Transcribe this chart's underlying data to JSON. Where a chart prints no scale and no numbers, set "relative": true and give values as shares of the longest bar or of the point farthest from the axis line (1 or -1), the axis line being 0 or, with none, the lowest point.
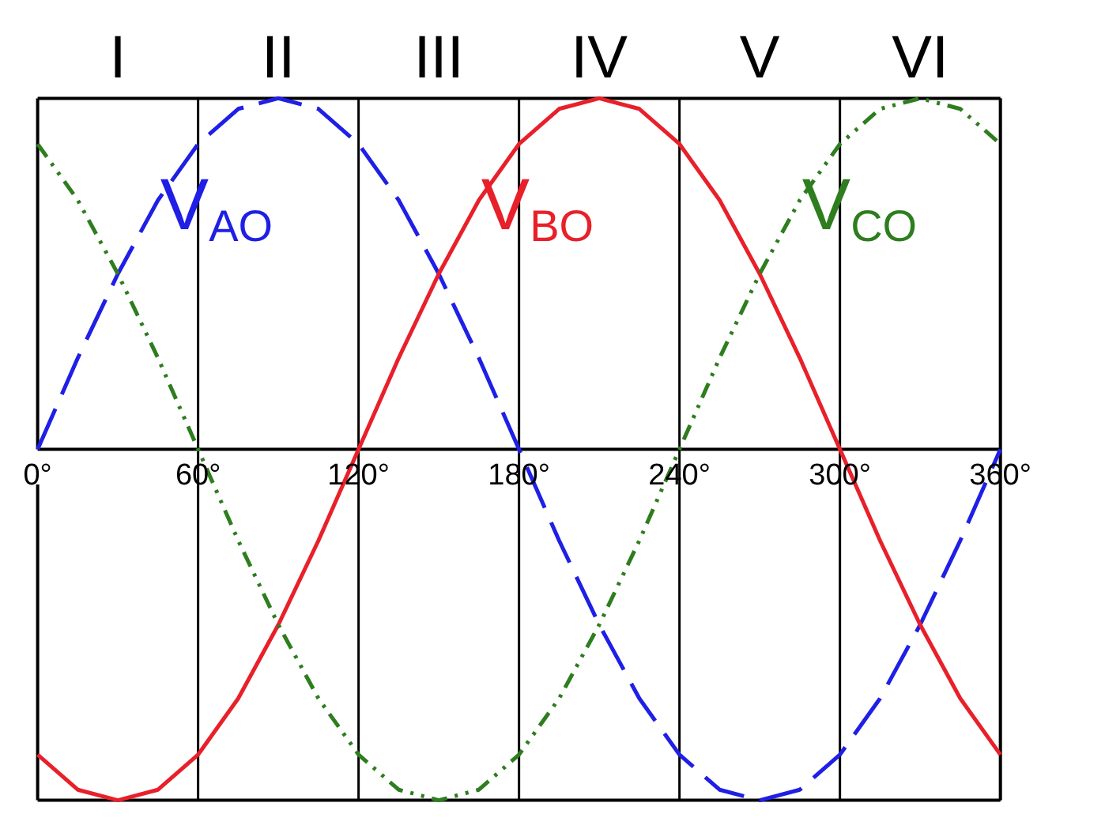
{
  "chart_data": {
    "type": "line",
    "relative": true,
    "x": [
      0,
      15,
      30,
      45,
      60,
      75,
      90,
      105,
      120,
      135,
      150,
      165,
      180,
      195,
      210,
      225,
      240,
      255,
      270,
      285,
      300,
      315,
      330,
      345,
      360
    ],
    "series": [
      {
        "name": "V$_{AO}$",
        "color": "#1f1fe6",
        "line_style": "dashed",
        "values": [
          0,
          0.26,
          0.5,
          0.71,
          0.87,
          0.97,
          1,
          0.97,
          0.87,
          0.71,
          0.5,
          0.26,
          0,
          -0.26,
          -0.5,
          -0.71,
          -0.87,
          -0.97,
          -1,
          -0.97,
          -0.87,
          -0.71,
          -0.5,
          -0.26,
          0
        ]
      },
      {
        "name": "V$_{BO}$",
        "color": "#e8202a",
        "line_style": "solid",
        "values": [
          -0.87,
          -0.97,
          -1,
          -0.97,
          -0.87,
          -0.71,
          -0.5,
          -0.26,
          0,
          0.26,
          0.5,
          0.71,
          0.87,
          0.97,
          1,
          0.97,
          0.87,
          0.71,
          0.5,
          0.26,
          0,
          -0.26,
          -0.5,
          -0.71,
          -0.87
        ]
      },
      {
        "name": "V$_{CO}$",
        "color": "#2e7d1e",
        "line_style": "dotted",
        "values": [
          0.87,
          0.71,
          0.5,
          0.26,
          0,
          -0.26,
          -0.5,
          -0.71,
          -0.87,
          -0.97,
          -1,
          -0.97,
          -0.87,
          -0.71,
          -0.5,
          -0.26,
          0,
          0.26,
          0.5,
          0.71,
          0.87,
          0.97,
          1,
          0.97,
          0.87
        ]
      }
    ],
    "xlim": [
      0,
      360
    ],
    "xticks": [
      {
        "value": 0,
        "label": "0°"
      },
      {
        "value": 60,
        "label": "60°"
      },
      {
        "value": 120,
        "label": "120°"
      },
      {
        "value": 180,
        "label": "180°"
      },
      {
        "value": 240,
        "label": "240°"
      },
      {
        "value": 300,
        "label": "300°"
      },
      {
        "value": 360,
        "label": "360°"
      }
    ],
    "annotations": [
      "I",
      "II",
      "III",
      "IV",
      "V",
      "VI"
    ],
    "grid": "x"
  }
}
